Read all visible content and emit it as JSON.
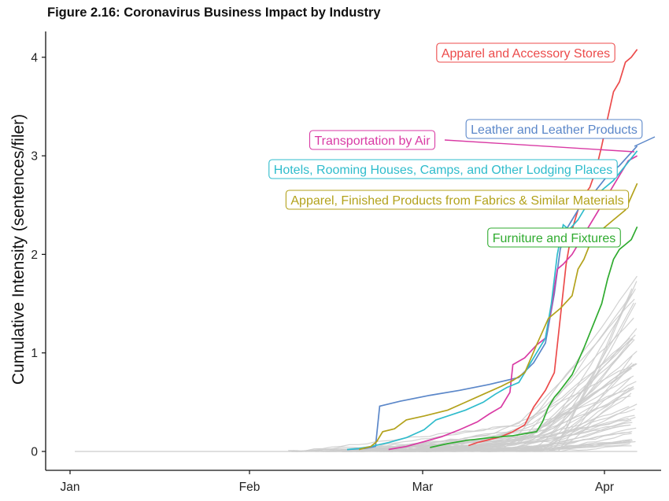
{
  "chart_data": {
    "type": "line",
    "title": "Figure 2.16: Coronavirus Business Impact by Industry",
    "xlabel": "",
    "ylabel": "Cumulative Intensity (sentences/filer)",
    "x_ticks": [
      "Jan",
      "Feb",
      "Mar",
      "Apr"
    ],
    "y_ticks": [
      0,
      1,
      2,
      3,
      4
    ],
    "ylim": [
      -0.15,
      4.2
    ],
    "grid": false,
    "highlighted_series": [
      {
        "name": "Apparel and Accessory Stores",
        "color": "#ec4b4b",
        "points": [
          [
            66.5,
            0.06
          ],
          [
            68,
            0.09
          ],
          [
            70,
            0.12
          ],
          [
            72,
            0.15
          ],
          [
            74,
            0.2
          ],
          [
            76,
            0.27
          ],
          [
            77.5,
            0.45
          ],
          [
            79.5,
            0.62
          ],
          [
            81,
            0.8
          ],
          [
            82,
            1.35
          ],
          [
            83,
            1.9
          ],
          [
            84,
            2.25
          ],
          [
            85,
            2.45
          ],
          [
            86,
            2.6
          ],
          [
            87,
            2.68
          ],
          [
            88,
            2.85
          ],
          [
            89,
            3.1
          ],
          [
            90,
            3.38
          ],
          [
            91,
            3.65
          ],
          [
            92,
            3.75
          ],
          [
            93,
            3.95
          ],
          [
            94,
            4.0
          ],
          [
            95,
            4.08
          ]
        ]
      },
      {
        "name": "Leather and Leather Products",
        "color": "#5b87c9",
        "points": [
          [
            46,
            0.02
          ],
          [
            49,
            0.03
          ],
          [
            50.8,
            0.05
          ],
          [
            51.5,
            0.46
          ],
          [
            55,
            0.51
          ],
          [
            60,
            0.57
          ],
          [
            65,
            0.62
          ],
          [
            70,
            0.68
          ],
          [
            75,
            0.75
          ],
          [
            77.5,
            0.9
          ],
          [
            79.5,
            1.1
          ],
          [
            81,
            1.6
          ],
          [
            82,
            2.05
          ],
          [
            83,
            2.25
          ],
          [
            84,
            2.35
          ],
          [
            85,
            2.45
          ],
          [
            86,
            2.55
          ],
          [
            88,
            2.65
          ],
          [
            90,
            2.8
          ],
          [
            92,
            2.9
          ],
          [
            93.5,
            3.0
          ],
          [
            95,
            3.1
          ]
        ]
      },
      {
        "name": "Transportation by Air",
        "color": "#d93aa4",
        "points": [
          [
            53,
            0.02
          ],
          [
            56,
            0.05
          ],
          [
            59,
            0.1
          ],
          [
            62,
            0.15
          ],
          [
            65,
            0.22
          ],
          [
            68,
            0.3
          ],
          [
            70,
            0.38
          ],
          [
            72,
            0.45
          ],
          [
            73.5,
            0.6
          ],
          [
            74,
            0.88
          ],
          [
            76,
            0.95
          ],
          [
            78,
            1.08
          ],
          [
            79.5,
            1.15
          ],
          [
            80.5,
            1.45
          ],
          [
            81.5,
            1.85
          ],
          [
            82.5,
            1.9
          ],
          [
            84,
            2.0
          ],
          [
            86,
            2.2
          ],
          [
            88,
            2.4
          ],
          [
            90,
            2.6
          ],
          [
            92,
            2.8
          ],
          [
            93.5,
            2.95
          ],
          [
            95,
            3.0
          ]
        ]
      },
      {
        "name": "Hotels, Rooming Houses, Camps, and Other Lodging Places",
        "color": "#2fbccc",
        "points": [
          [
            46,
            0.02
          ],
          [
            48,
            0.03
          ],
          [
            50,
            0.05
          ],
          [
            53,
            0.09
          ],
          [
            56,
            0.14
          ],
          [
            59,
            0.22
          ],
          [
            61,
            0.32
          ],
          [
            63,
            0.36
          ],
          [
            66,
            0.42
          ],
          [
            69,
            0.5
          ],
          [
            71,
            0.58
          ],
          [
            73,
            0.65
          ],
          [
            75,
            0.7
          ],
          [
            76.5,
            0.85
          ],
          [
            78,
            1.0
          ],
          [
            79.5,
            1.15
          ],
          [
            80.5,
            1.5
          ],
          [
            81.5,
            2.0
          ],
          [
            82.5,
            2.3
          ],
          [
            83.5,
            2.25
          ],
          [
            85,
            2.35
          ],
          [
            87,
            2.55
          ],
          [
            89,
            2.65
          ],
          [
            91,
            2.75
          ],
          [
            93,
            2.9
          ],
          [
            95,
            3.05
          ]
        ]
      },
      {
        "name": "Apparel, Finished Products from Fabrics & Similar Materials",
        "color": "#b3a21c",
        "points": [
          [
            48,
            0.02
          ],
          [
            50,
            0.05
          ],
          [
            51,
            0.1
          ],
          [
            52,
            0.2
          ],
          [
            54,
            0.23
          ],
          [
            56,
            0.32
          ],
          [
            59,
            0.36
          ],
          [
            63,
            0.42
          ],
          [
            66,
            0.5
          ],
          [
            69,
            0.58
          ],
          [
            72,
            0.66
          ],
          [
            74,
            0.72
          ],
          [
            76,
            0.8
          ],
          [
            78,
            1.08
          ],
          [
            80,
            1.35
          ],
          [
            82,
            1.45
          ],
          [
            84,
            1.58
          ],
          [
            85,
            1.85
          ],
          [
            86,
            1.95
          ],
          [
            87,
            2.1
          ],
          [
            89,
            2.25
          ],
          [
            91,
            2.35
          ],
          [
            93,
            2.45
          ],
          [
            95,
            2.72
          ]
        ]
      },
      {
        "name": "Furniture and Fixtures",
        "color": "#2fab2f",
        "points": [
          [
            60,
            0.04
          ],
          [
            63,
            0.08
          ],
          [
            66,
            0.11
          ],
          [
            70,
            0.14
          ],
          [
            74,
            0.16
          ],
          [
            78,
            0.2
          ],
          [
            79,
            0.3
          ],
          [
            80,
            0.45
          ],
          [
            81,
            0.55
          ],
          [
            82,
            0.62
          ],
          [
            84,
            0.78
          ],
          [
            86,
            1.05
          ],
          [
            88,
            1.35
          ],
          [
            89,
            1.5
          ],
          [
            90,
            1.75
          ],
          [
            91,
            1.95
          ],
          [
            92,
            2.05
          ],
          [
            93,
            2.1
          ],
          [
            94,
            2.15
          ],
          [
            95,
            2.28
          ]
        ]
      }
    ],
    "background_series_color": "#cccccc"
  }
}
